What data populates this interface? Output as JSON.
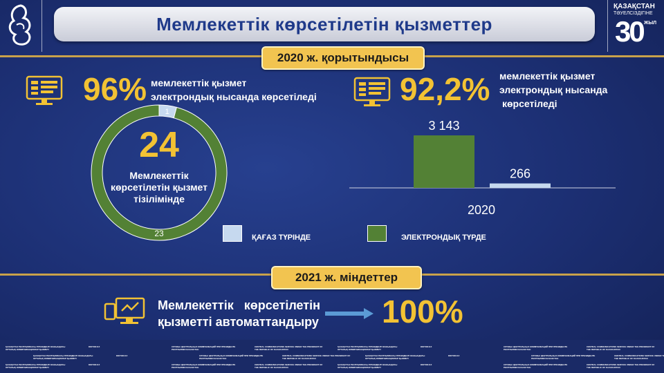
{
  "header": {
    "title": "Мемлекеттік көрсетілетін қызметтер",
    "logo_right": {
      "line1": "ҚАЗАҚСТАН",
      "line2": "ТӘУЕЛСІЗДІГІНЕ",
      "number": "30",
      "suffix": "ЖЫЛ"
    }
  },
  "section_2020": {
    "badge": "2020 ж. қорытындысы",
    "left": {
      "percent": "96%",
      "label_line1": "мемлекеттік қызмет",
      "label_line2": "электрондық нысанда көрсетіледі",
      "center_number": "24",
      "center_line1": "Мемлекеттік",
      "center_line2": "көрсетілетін қызмет",
      "center_line3": "тізілімінде"
    },
    "right": {
      "percent": "92,2%",
      "label_line1": "мемлекеттік қызмет",
      "label_line2": "электрондық нысанда",
      "label_line3": "көрсетіледі"
    },
    "legend": {
      "paper": "ҚАҒАЗ ТҮРІНДЕ",
      "electronic": "ЭЛЕКТРОНДЫҚ ТҮРДЕ"
    }
  },
  "section_2021": {
    "badge": "2021 ж. міндеттер",
    "text_line1": "Мемлекеттік   көрсетілетін",
    "text_line2": "қызметті автоматтандыру",
    "percent": "100%"
  },
  "colors": {
    "paper": "#c6d9ef",
    "electronic": "#538135",
    "accent": "#f2c234"
  },
  "chart_data": [
    {
      "type": "pie",
      "categories": [
        "ҚАҒАЗ ТҮРІНДЕ",
        "ЭЛЕКТРОНДЫҚ ТҮРДЕ"
      ],
      "values": [
        1,
        23
      ],
      "data_labels": [
        "1",
        "23"
      ]
    },
    {
      "type": "bar",
      "categories": [
        "2020"
      ],
      "series": [
        {
          "name": "ЭЛЕКТРОНДЫҚ ТҮРДЕ",
          "values": [
            3143
          ],
          "label": "3 143"
        },
        {
          "name": "ҚАҒАЗ ТҮРІНДЕ",
          "values": [
            266
          ],
          "label": "266"
        }
      ],
      "ylim": [
        0,
        3143
      ]
    }
  ],
  "footer": {
    "items": [
      "ҚАЗАҚСТАН РЕСПУБЛИКАСЫ ПРЕЗИДЕНТІ ЖАНЫНДАҒЫ ОРТАЛЫҚ КОММУНИКАЦИЯЛАР ҚЫЗМЕТІ",
      "DIKTOR.KZ",
      "СЛУЖБА ЦЕНТРАЛЬНЫХ КОММУНИКАЦИЙ ПРИ ПРЕЗИДЕНТЕ РЕСПУБЛИКИ КАЗАХСТАН",
      "CENTRAL COMMUNICATIONS SERVICE UNDER THE PRESIDENT OF THE REPUBLIC OF KAZAKHSTAN"
    ]
  }
}
